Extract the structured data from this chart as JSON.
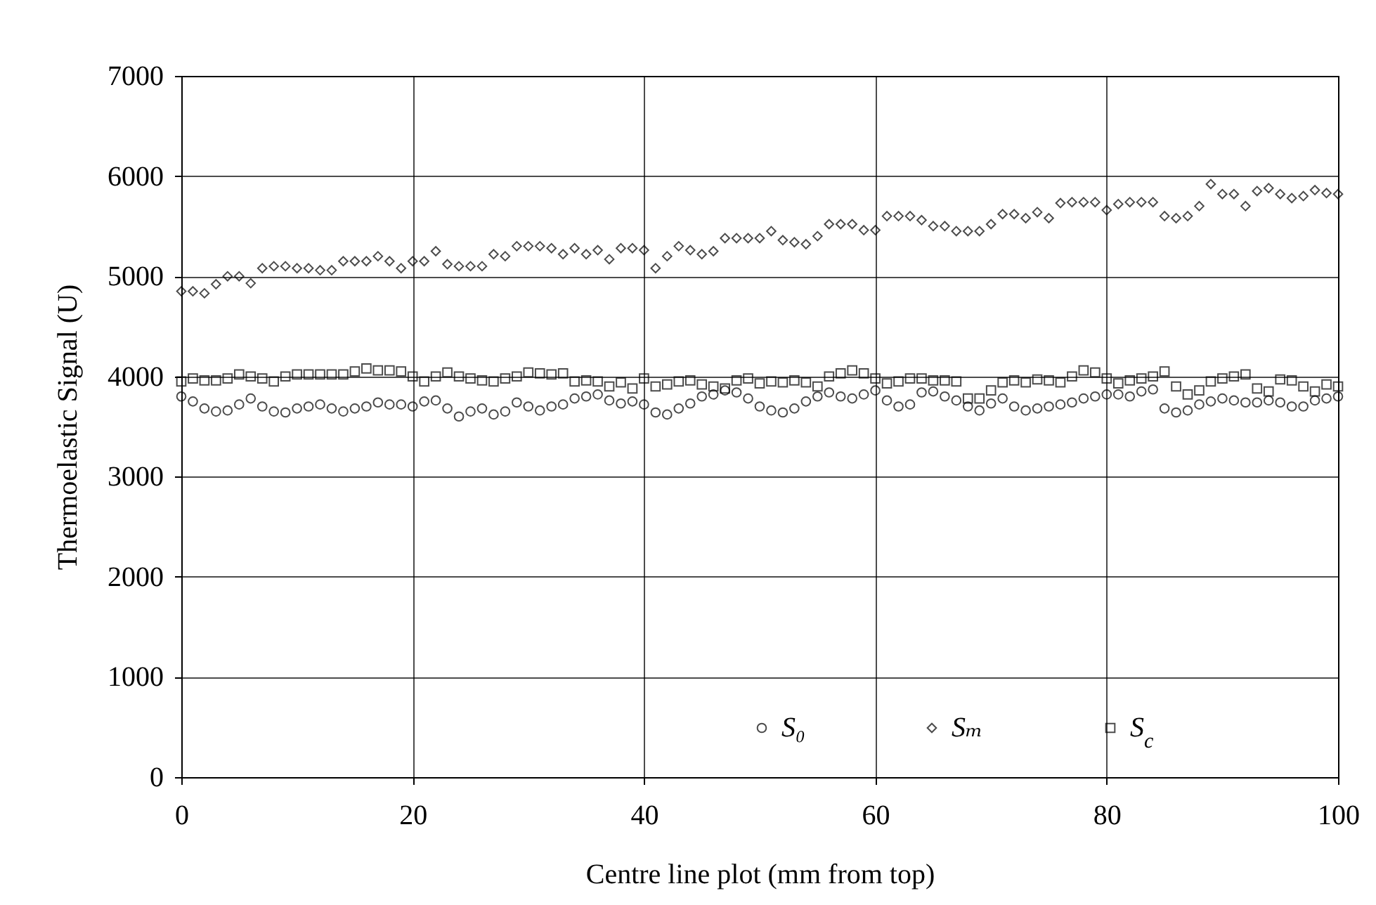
{
  "chart_data": {
    "type": "scatter",
    "xlabel": "Centre line plot (mm from top)",
    "ylabel": "Thermoelastic Signal (U)",
    "x": [
      0,
      1,
      2,
      3,
      4,
      5,
      6,
      7,
      8,
      9,
      10,
      11,
      12,
      13,
      14,
      15,
      16,
      17,
      18,
      19,
      20,
      21,
      22,
      23,
      24,
      25,
      26,
      27,
      28,
      29,
      30,
      31,
      32,
      33,
      34,
      35,
      36,
      37,
      38,
      39,
      40,
      41,
      42,
      43,
      44,
      45,
      46,
      47,
      48,
      49,
      50,
      51,
      52,
      53,
      54,
      55,
      56,
      57,
      58,
      59,
      60,
      61,
      62,
      63,
      64,
      65,
      66,
      67,
      68,
      69,
      70,
      71,
      72,
      73,
      74,
      75,
      76,
      77,
      78,
      79,
      80,
      81,
      82,
      83,
      84,
      85,
      86,
      87,
      88,
      89,
      90,
      91,
      92,
      93,
      94,
      95,
      96,
      97,
      98,
      99,
      100
    ],
    "series": [
      {
        "name": "S₀",
        "color": "#000000",
        "marker": "circle",
        "values": [
          3800,
          3750,
          3680,
          3650,
          3660,
          3720,
          3780,
          3700,
          3650,
          3640,
          3680,
          3700,
          3720,
          3680,
          3650,
          3680,
          3700,
          3740,
          3720,
          3720,
          3700,
          3750,
          3760,
          3680,
          3600,
          3650,
          3680,
          3620,
          3650,
          3740,
          3700,
          3660,
          3700,
          3720,
          3780,
          3800,
          3820,
          3760,
          3730,
          3750,
          3720,
          3640,
          3620,
          3680,
          3730,
          3800,
          3820,
          3860,
          3840,
          3780,
          3700,
          3660,
          3640,
          3680,
          3750,
          3800,
          3840,
          3800,
          3780,
          3820,
          3860,
          3760,
          3700,
          3720,
          3840,
          3850,
          3800,
          3760,
          3700,
          3660,
          3730,
          3780,
          3700,
          3660,
          3680,
          3700,
          3720,
          3740,
          3780,
          3800,
          3820,
          3820,
          3800,
          3850,
          3870,
          3680,
          3640,
          3660,
          3720,
          3750,
          3780,
          3760,
          3740,
          3740,
          3760,
          3740,
          3700,
          3700,
          3760,
          3780,
          3800
        ]
      },
      {
        "name": "Sₘ",
        "color": "#000000",
        "marker": "diamond",
        "values": [
          4850,
          4850,
          4830,
          4920,
          5000,
          5000,
          4930,
          5080,
          5100,
          5100,
          5080,
          5080,
          5060,
          5060,
          5150,
          5150,
          5150,
          5200,
          5150,
          5080,
          5150,
          5150,
          5250,
          5120,
          5100,
          5100,
          5100,
          5220,
          5200,
          5300,
          5300,
          5300,
          5280,
          5220,
          5280,
          5220,
          5260,
          5170,
          5280,
          5280,
          5260,
          5080,
          5200,
          5300,
          5260,
          5220,
          5250,
          5380,
          5380,
          5380,
          5380,
          5450,
          5360,
          5340,
          5320,
          5400,
          5520,
          5520,
          5520,
          5460,
          5460,
          5600,
          5600,
          5600,
          5560,
          5500,
          5500,
          5450,
          5450,
          5450,
          5520,
          5620,
          5620,
          5580,
          5640,
          5580,
          5730,
          5740,
          5740,
          5740,
          5660,
          5720,
          5740,
          5740,
          5740,
          5600,
          5580,
          5600,
          5700,
          5920,
          5820,
          5820,
          5700,
          5850,
          5880,
          5820,
          5780,
          5800,
          5860,
          5830,
          5820
        ]
      },
      {
        "name": "S$_{c}$",
        "color": "#000000",
        "marker": "square",
        "values": [
          3950,
          3980,
          3960,
          3960,
          3980,
          4020,
          4000,
          3980,
          3950,
          4000,
          4020,
          4020,
          4020,
          4020,
          4020,
          4050,
          4080,
          4060,
          4060,
          4050,
          4000,
          3950,
          4000,
          4040,
          4000,
          3980,
          3960,
          3950,
          3980,
          4000,
          4040,
          4030,
          4020,
          4030,
          3950,
          3960,
          3950,
          3900,
          3940,
          3880,
          3980,
          3900,
          3920,
          3950,
          3960,
          3920,
          3900,
          3880,
          3960,
          3980,
          3930,
          3950,
          3940,
          3960,
          3940,
          3900,
          4000,
          4030,
          4060,
          4030,
          3980,
          3930,
          3950,
          3980,
          3980,
          3960,
          3960,
          3950,
          3780,
          3780,
          3860,
          3940,
          3960,
          3940,
          3970,
          3960,
          3940,
          4000,
          4060,
          4040,
          3980,
          3930,
          3960,
          3980,
          4000,
          4050,
          3900,
          3820,
          3860,
          3950,
          3980,
          4000,
          4020,
          3880,
          3850,
          3970,
          3960,
          3900,
          3850,
          3920,
          3900
        ]
      }
    ],
    "xlim": [
      0,
      100
    ],
    "xticks": [
      0,
      20,
      40,
      60,
      80,
      100
    ],
    "ylim": [
      0,
      7000
    ],
    "yticks": [
      0,
      1000,
      2000,
      3000,
      4000,
      5000,
      6000,
      7000
    ],
    "grid": true,
    "legend": "bottom right"
  }
}
